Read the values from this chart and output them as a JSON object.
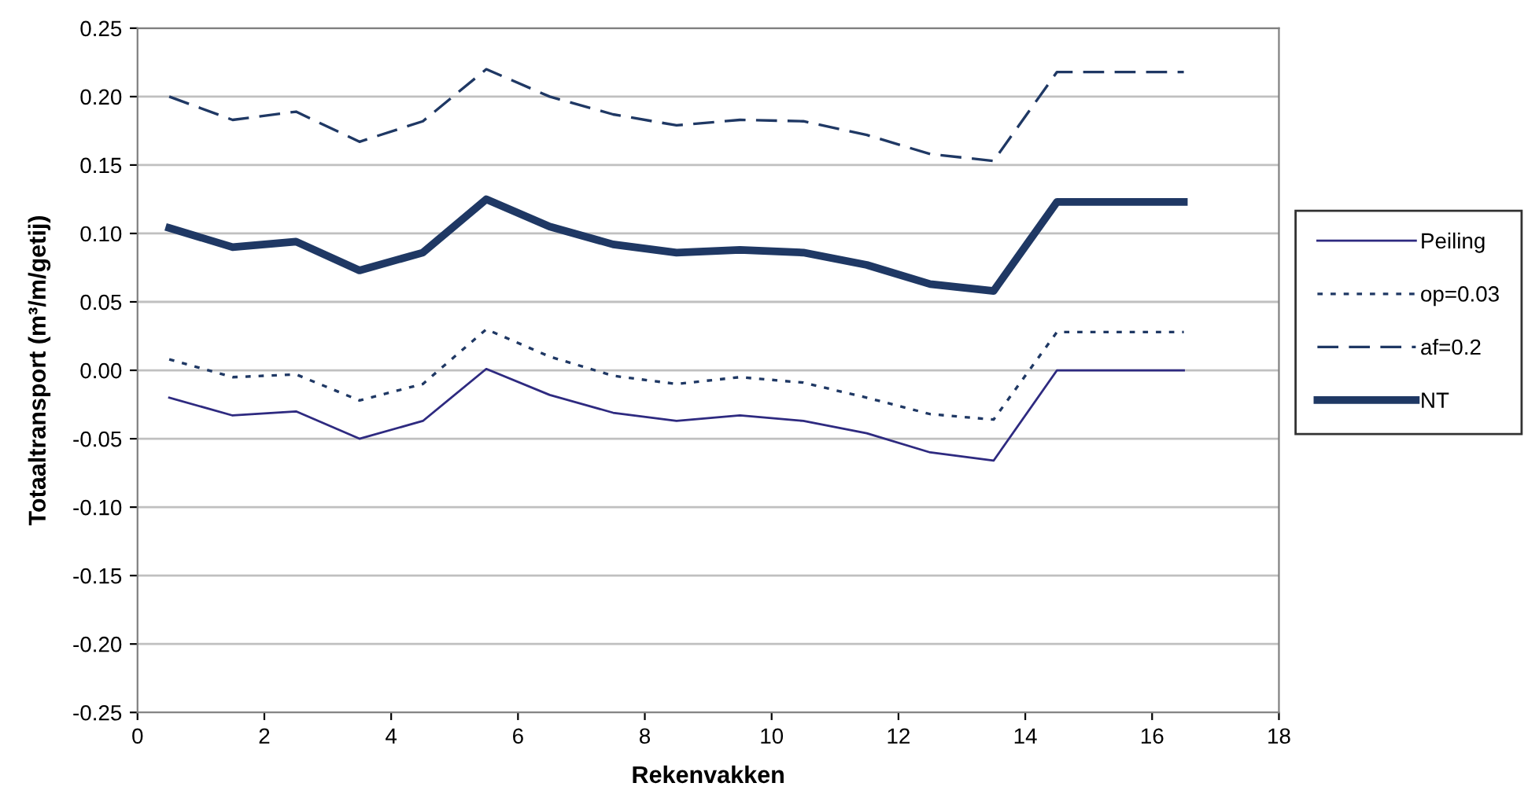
{
  "chart_data": {
    "type": "line",
    "xlabel": "Rekenvakken",
    "ylabel": "Totaaltransport (m³/m/getij)",
    "x": [
      0.5,
      1.5,
      2.5,
      3.5,
      4.5,
      5.5,
      6.5,
      7.5,
      8.5,
      9.5,
      10.5,
      11.5,
      12.5,
      13.5,
      14.5,
      15.5,
      16.5
    ],
    "series": [
      {
        "name": "Peiling",
        "color": "#2e2a80",
        "line_style": "solid",
        "values": [
          -0.02,
          -0.033,
          -0.03,
          -0.05,
          -0.037,
          0.001,
          -0.018,
          -0.031,
          -0.037,
          -0.033,
          -0.037,
          -0.046,
          -0.06,
          -0.066,
          0.0,
          0.0,
          0.0
        ]
      },
      {
        "name": "op=0.03",
        "color": "#1f3864",
        "line_style": "dotted",
        "values": [
          0.008,
          -0.005,
          -0.003,
          -0.022,
          -0.01,
          0.03,
          0.01,
          -0.004,
          -0.01,
          -0.005,
          -0.009,
          -0.02,
          -0.032,
          -0.036,
          0.028,
          0.028,
          0.028
        ]
      },
      {
        "name": "af=0.2",
        "color": "#1f3864",
        "line_style": "dashed",
        "values": [
          0.2,
          0.183,
          0.189,
          0.167,
          0.182,
          0.22,
          0.2,
          0.187,
          0.179,
          0.183,
          0.182,
          0.172,
          0.158,
          0.153,
          0.218,
          0.218,
          0.218
        ]
      },
      {
        "name": "NT",
        "color": "#1f3864",
        "line_style": "solid",
        "values": [
          0.104,
          0.09,
          0.094,
          0.073,
          0.086,
          0.125,
          0.105,
          0.092,
          0.086,
          0.088,
          0.086,
          0.077,
          0.063,
          0.058,
          0.123,
          0.123,
          0.123
        ]
      }
    ],
    "xlim": [
      0,
      18
    ],
    "xticks": [
      0,
      2,
      4,
      6,
      8,
      10,
      12,
      14,
      16,
      18
    ],
    "ylim": [
      -0.25,
      0.25
    ],
    "yticks": [
      {
        "value": -0.25,
        "label": "-0.25"
      },
      {
        "value": -0.2,
        "label": "-0.20"
      },
      {
        "value": -0.15,
        "label": "-0.15"
      },
      {
        "value": -0.1,
        "label": "-0.10"
      },
      {
        "value": -0.05,
        "label": "-0.05"
      },
      {
        "value": 0,
        "label": "0.00"
      },
      {
        "value": 0.05,
        "label": "0.05"
      },
      {
        "value": 0.1,
        "label": "0.10"
      },
      {
        "value": 0.15,
        "label": "0.15"
      },
      {
        "value": 0.2,
        "label": "0.20"
      },
      {
        "value": 0.25,
        "label": "0.25"
      }
    ],
    "grid": "y",
    "legend": "right",
    "marker": "none"
  }
}
